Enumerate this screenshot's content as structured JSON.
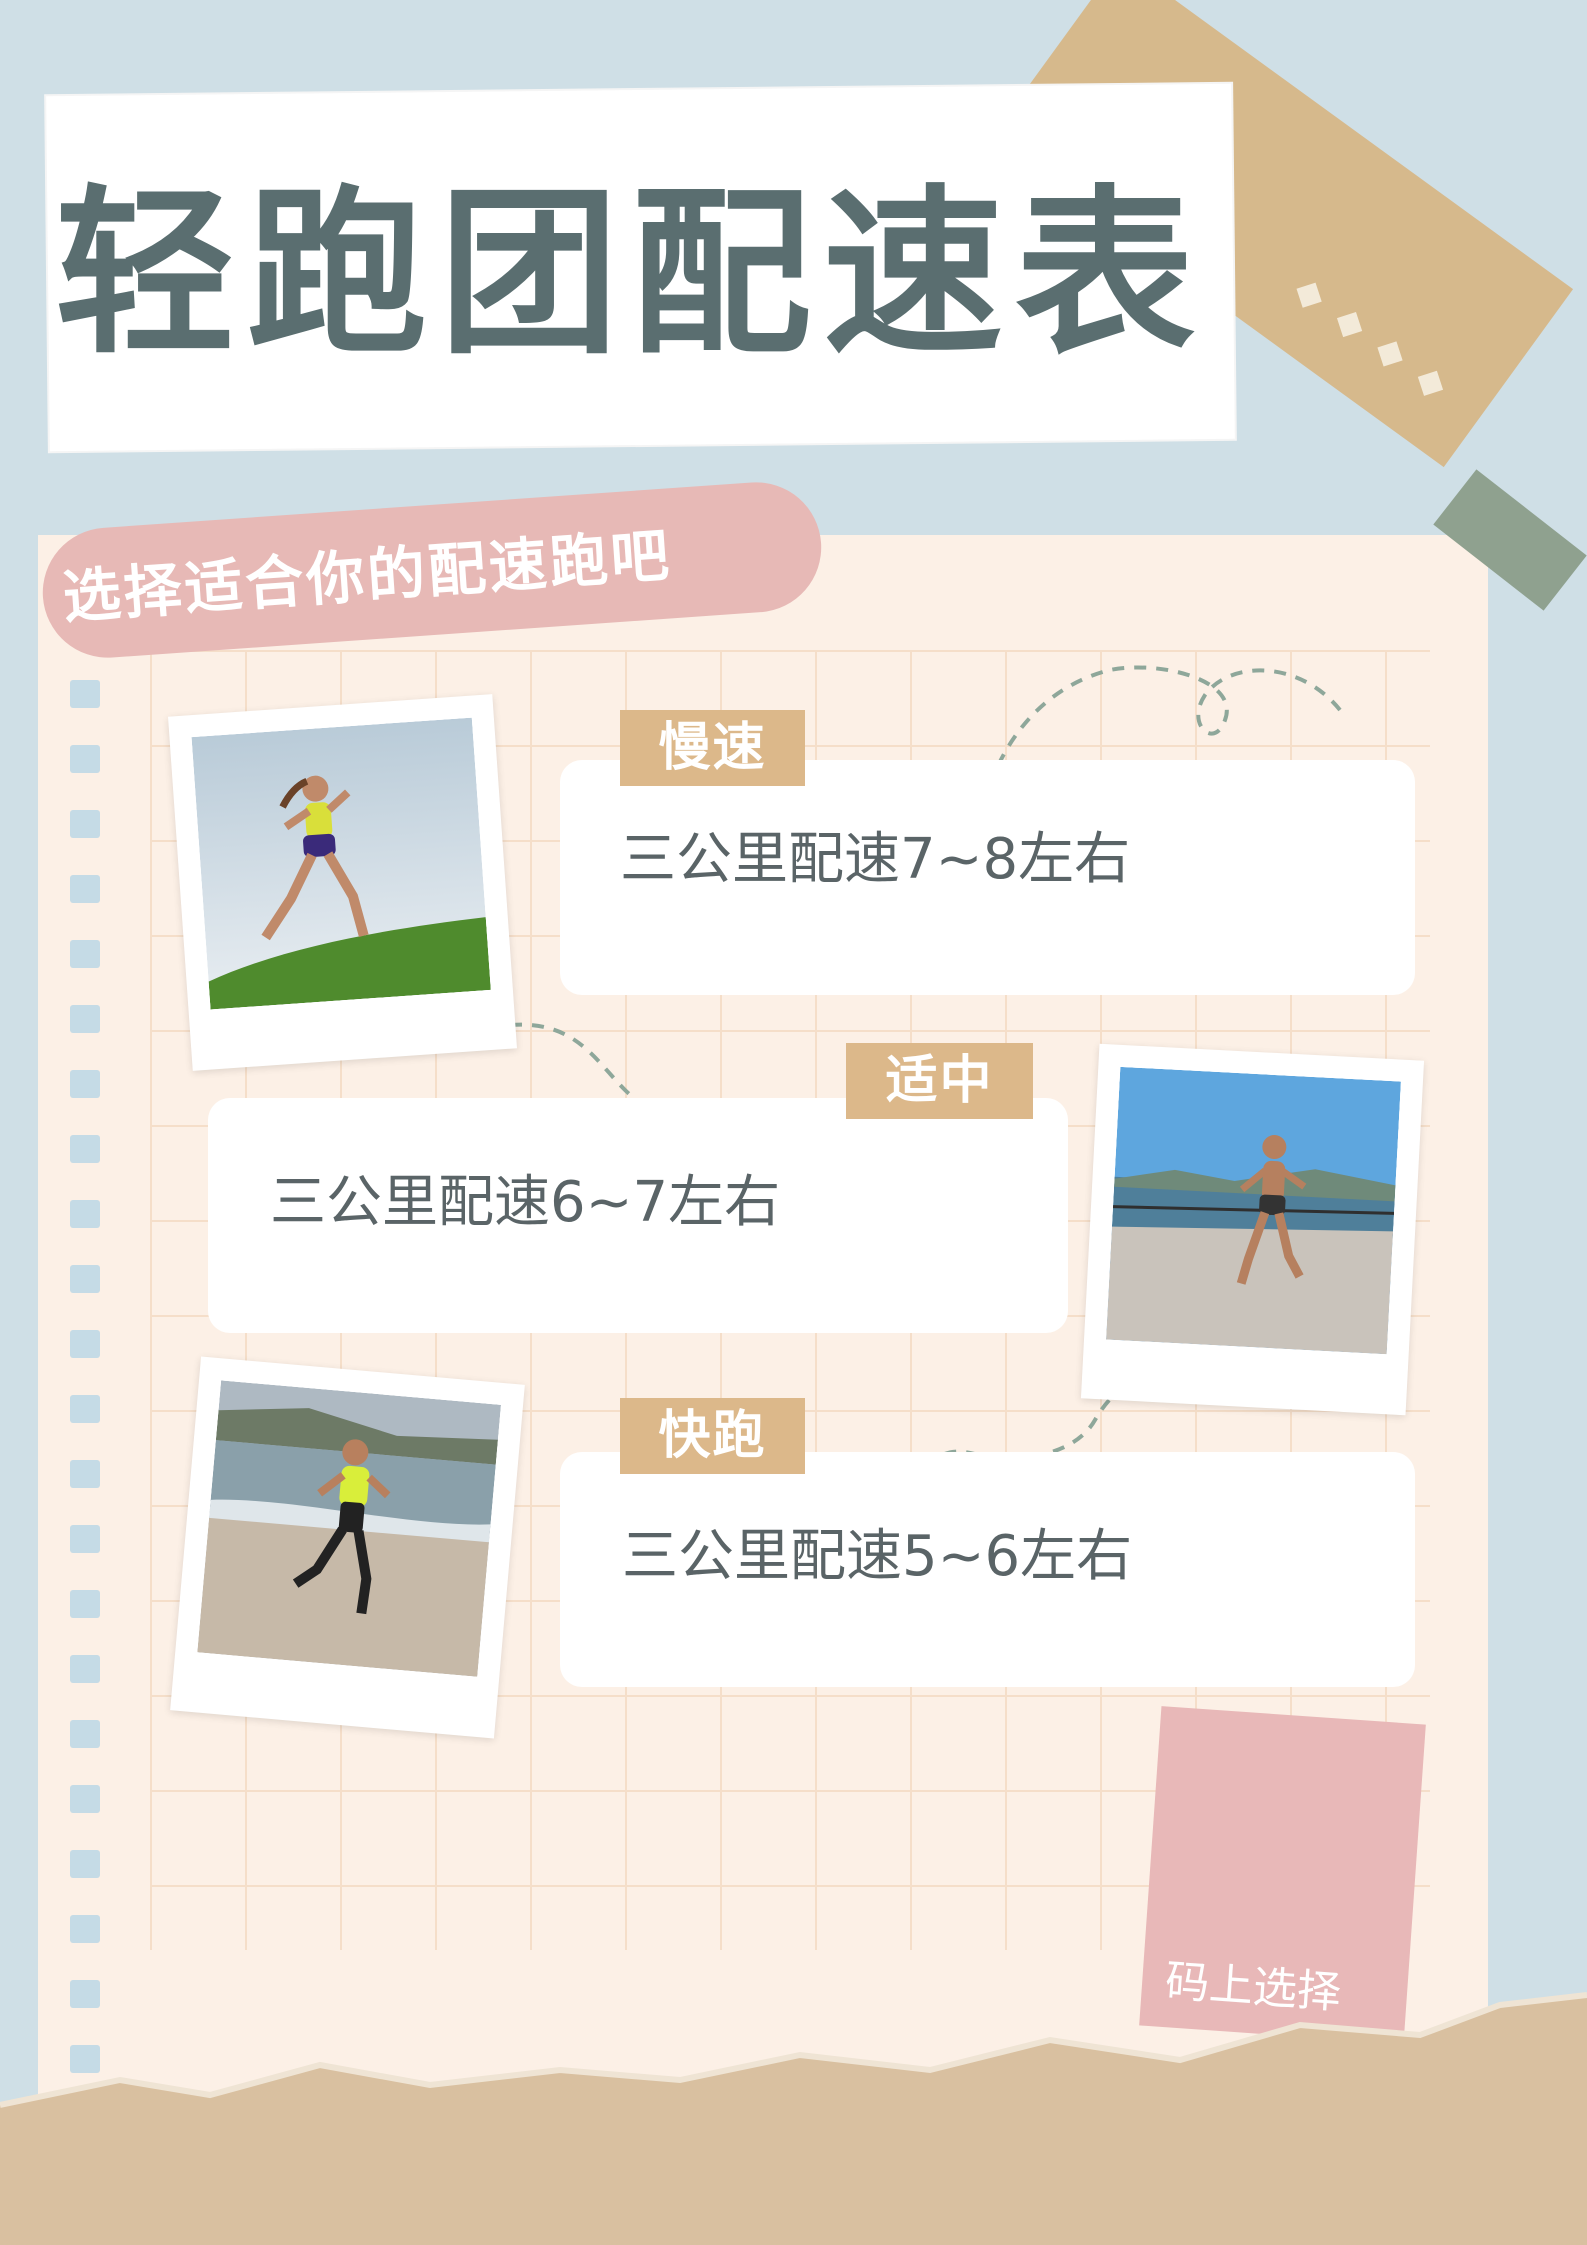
{
  "title": "轻跑团配速表",
  "subtitle": "选择适合你的配速跑吧",
  "paces": [
    {
      "tag": "慢速",
      "text": "三公里配速7~8左右"
    },
    {
      "tag": "适中",
      "text": "三公里配速6~7左右"
    },
    {
      "tag": "快跑",
      "text": "三公里配速5~6左右"
    }
  ],
  "note": "码上选择",
  "colors": {
    "background": "#cfdfe6",
    "paper": "#fcf0e6",
    "title": "#5a6e70",
    "tag": "#dcb88a",
    "pill": "#e7b9b6",
    "kraft": "#d6b98c"
  }
}
